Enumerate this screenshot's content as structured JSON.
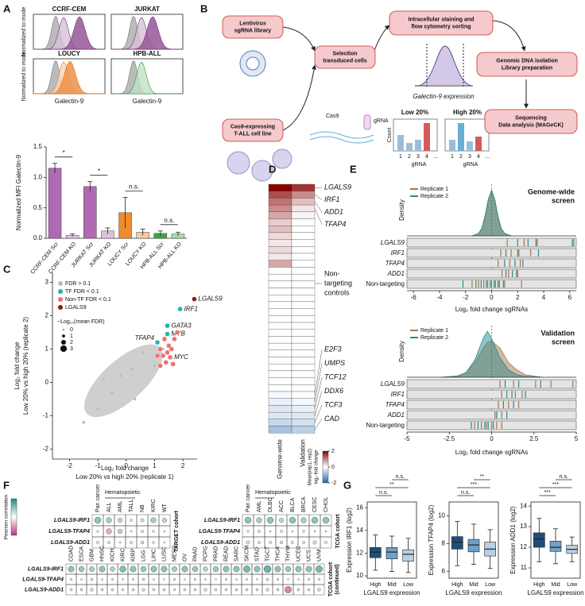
{
  "panel_labels": [
    "A",
    "B",
    "C",
    "D",
    "E",
    "F",
    "G"
  ],
  "histograms": {
    "titles": [
      "CCRF-CEM",
      "JURKAT",
      "LOUCY",
      "HPB-ALL"
    ],
    "ylabel": "Normalized to mode",
    "xlabel": "Galectin-9"
  },
  "diagram": {
    "boxes": [
      [
        "Lentivirus",
        "sgRNA library"
      ],
      [
        "Cas9-expressing",
        "T-ALL cell line"
      ],
      [
        "Selection",
        "transduced cells"
      ],
      [
        "Intracellular staining and",
        "flow cytometry sorting"
      ],
      [
        "Genomic DNA isolation",
        "Library preparation"
      ],
      [
        "Sequencing",
        "Data analysis (MAGeCK)"
      ]
    ],
    "cas9": "Cas9",
    "grna": "gRNA",
    "sort_axis": "Galectin-9 expression",
    "low": "Low 20%",
    "high": "High 20%",
    "count": "Count",
    "bar_ticks": [
      "1",
      "2",
      "3",
      "4",
      "..."
    ]
  },
  "chart_data": [
    {
      "type": "bar",
      "ylabel": "Normalized MFI Galectin-9",
      "categories": [
        "CCRF-CEM Scr",
        "CCRF-CEM KO",
        "JURKAT Scr",
        "JURKAT KO",
        "LOUCY Scr",
        "LOUCY KO",
        "HPB-ALL Scr",
        "HPB-ALL KO"
      ],
      "values": [
        1.15,
        0.05,
        0.85,
        0.12,
        0.42,
        0.1,
        0.08,
        0.07
      ],
      "errors": [
        0.08,
        0.02,
        0.08,
        0.05,
        0.25,
        0.05,
        0.04,
        0.03
      ],
      "colors": [
        "#b06ab3",
        "#dcc2e0",
        "#b06ab3",
        "#dcc2e0",
        "#f08c2a",
        "#f8c99c",
        "#3aa845",
        "#a9dca3"
      ],
      "ylim": [
        0,
        1.5
      ],
      "yticks": [
        {
          "value": 0,
          "label": "0.0"
        },
        0.5,
        {
          "value": 1,
          "label": "1.0"
        },
        1.5
      ],
      "annotations": [
        "*",
        "*",
        "n.s.",
        "n.s."
      ]
    },
    {
      "type": "scatter",
      "xlabel": "Log₂ fold change",
      "xlabel2": "Low 20% vs high 20% (replicate 1)",
      "ylabel": "Log₂ fold change",
      "ylabel2": "Low 20% vs high 20% (replicate 2)",
      "xlim": [
        -2.6,
        2.5
      ],
      "ylim": [
        -2.3,
        3.3
      ],
      "xticks": [
        -2,
        -1,
        0,
        1,
        2
      ],
      "yticks": [
        -2,
        -1,
        0,
        1,
        2,
        3
      ],
      "series": [
        {
          "name": "FDR > 0.1",
          "color": "#bdbdbd",
          "x": [
            -0.5,
            0.2,
            -1,
            0.6,
            -1.5,
            1,
            0.3,
            -0.2,
            1.3,
            -0.8
          ],
          "values": [
            -0.3,
            0.4,
            -0.8,
            0.9,
            -1.2,
            0.5,
            -0.5,
            0.2,
            1.0,
            0.1
          ],
          "labels": [
            null,
            null,
            null,
            null,
            null,
            null,
            null,
            null,
            null,
            null
          ]
        },
        {
          "name": "TF FDR < 0.1",
          "color": "#1fb3b3",
          "x": [
            1.9,
            1.45,
            1.45,
            1.1
          ],
          "values": [
            2.2,
            1.7,
            1.45,
            1.2
          ],
          "labels": [
            "IRF1",
            "GATA3",
            "MYB",
            "TFAP4"
          ]
        },
        {
          "name": "Non-TF FDR < 0.1",
          "color": "#f07070",
          "x": [
            1.2,
            1.3,
            1.5,
            1.4,
            1.6,
            1.7,
            1.2,
            1.8,
            1.35,
            1.55,
            1.1,
            1.65,
            1.45
          ],
          "values": [
            1.0,
            0.8,
            1.1,
            0.6,
            1.0,
            1.3,
            0.5,
            1.5,
            1.3,
            0.75,
            0.8,
            0.55,
            0.9
          ],
          "labels": [
            null,
            null,
            null,
            null,
            null,
            null,
            null,
            null,
            null,
            "MYC",
            null,
            null,
            null
          ]
        },
        {
          "name": "LGALS9",
          "color": "#8b1a1a",
          "x": [
            2.4
          ],
          "values": [
            2.5
          ],
          "labels": [
            "LGALS9"
          ]
        }
      ],
      "size_legend": {
        "title": "−Log₁₀(mean FDR)",
        "values": [
          0,
          1,
          2,
          3
        ]
      }
    },
    {
      "type": "heatmap",
      "columns": [
        "Genome-wide",
        "Validation"
      ],
      "clim": [
        -2,
        2
      ],
      "values": [
        [
          2.3,
          1.6
        ],
        [
          1.4,
          0.9
        ],
        [
          1.1,
          0.5
        ],
        [
          0.9,
          0.2
        ],
        [
          0.7,
          0.1
        ],
        [
          0.4,
          0
        ],
        [
          0.5,
          0
        ],
        [
          0.3,
          0
        ],
        [
          0.2,
          0
        ],
        [
          0.3,
          0
        ],
        [
          0.2,
          0
        ],
        [
          0.7,
          0
        ],
        [
          0,
          0
        ],
        [
          0,
          0
        ],
        [
          0,
          0
        ],
        [
          0,
          0
        ],
        [
          0,
          0
        ],
        [
          0,
          0
        ],
        [
          0,
          0
        ],
        [
          0,
          0
        ],
        [
          0,
          0
        ],
        [
          0,
          0
        ],
        [
          0,
          0
        ],
        [
          0,
          0
        ],
        [
          0,
          0
        ],
        [
          0,
          0
        ],
        [
          0,
          0
        ],
        [
          0,
          0
        ],
        [
          0,
          0
        ],
        [
          0,
          0
        ],
        [
          -0.1,
          0
        ],
        [
          -0.2,
          -0.1
        ],
        [
          -0.3,
          -0.2
        ],
        [
          -0.3,
          -0.3
        ],
        [
          -0.5,
          -0.4
        ],
        [
          -0.8,
          -0.6
        ]
      ],
      "genes_top": [
        "LGALS9",
        "IRF1",
        "ADD1",
        "TFAP4"
      ],
      "controls": [
        "Non-",
        "targeting",
        "controls"
      ],
      "genes_bottom": [
        "E2F3",
        "UMPS",
        "TCF12",
        "DDX6",
        "TCF3",
        "CAD"
      ],
      "colorbar_label": [
        "Mean(rep1, rep2)",
        "log₂ fold change"
      ],
      "colorbar_ticks": [
        2,
        0,
        -2
      ]
    },
    {
      "type": "density",
      "title": [
        "Genome-wide",
        "screen"
      ],
      "ylabel": "Density",
      "xlabel": "Log₂ fold change sgRNAs",
      "xlim": [
        -6.5,
        6.5
      ],
      "xticks": [
        -6,
        -4,
        -2,
        0,
        2,
        4,
        6
      ],
      "ylim": [
        0,
        1
      ],
      "x": [
        -1.5,
        -1,
        -0.75,
        -0.5,
        -0.25,
        0,
        0.25,
        0.5,
        0.75,
        1,
        1.5
      ],
      "series": [
        {
          "name": "Replicate 1",
          "color": "#a9744a",
          "values": [
            0,
            0.05,
            0.15,
            0.4,
            0.75,
            0.95,
            0.75,
            0.4,
            0.15,
            0.05,
            0
          ]
        },
        {
          "name": "Replicate 2",
          "color": "#2a8a8a",
          "values": [
            0,
            0.05,
            0.16,
            0.42,
            0.76,
            0.93,
            0.74,
            0.38,
            0.14,
            0.05,
            0
          ]
        }
      ],
      "rug": [
        {
          "label": "LGALS9",
          "values": [
            [
              1.2,
              2.5,
              3.4,
              6.3
            ],
            [
              2.0,
              2.8,
              3.5,
              6.2
            ]
          ]
        },
        {
          "label": "IRF1",
          "values": [
            [
              0.7,
              1.5,
              2.1,
              3.0
            ],
            [
              1.1,
              2.0,
              3.6
            ]
          ]
        },
        {
          "label": "TFAP4",
          "values": [
            [
              0.5,
              1.4,
              2.2
            ],
            [
              1.0,
              1.8,
              2.4
            ]
          ]
        },
        {
          "label": "ADD1",
          "values": [
            [
              0.8,
              1.3,
              1.9
            ],
            [
              1.1,
              1.6,
              2.0
            ]
          ]
        },
        {
          "label": "Non-targeting",
          "values": [
            [
              -1.5,
              -1.0,
              -0.6,
              -0.3,
              0,
              0.3,
              0.6,
              1.0,
              2.3
            ],
            [
              -2.2,
              -1.2,
              -0.8,
              -0.4,
              -0.1,
              0.2,
              0.5,
              0.9
            ]
          ]
        }
      ]
    },
    {
      "type": "density",
      "title": [
        "Validation",
        "screen"
      ],
      "ylabel": "Density",
      "xlabel": "Log₂ fold change sgRNAs",
      "xlim": [
        -5,
        5
      ],
      "xticks": [
        -5,
        -2.5,
        0,
        2.5,
        5
      ],
      "ylim": [
        0,
        1
      ],
      "x": [
        -3,
        -2,
        -1.5,
        -1,
        -0.5,
        -0.25,
        0,
        0.5,
        1,
        1.5,
        2,
        3
      ],
      "series": [
        {
          "name": "Replicate 1",
          "color": "#a9744a",
          "values": [
            0,
            0.03,
            0.1,
            0.3,
            0.6,
            0.72,
            0.75,
            0.6,
            0.3,
            0.15,
            0.05,
            0
          ]
        },
        {
          "name": "Replicate 2",
          "color": "#2a8a8a",
          "values": [
            0,
            0.02,
            0.1,
            0.35,
            0.8,
            0.95,
            0.8,
            0.4,
            0.15,
            0.05,
            0.02,
            0
          ]
        }
      ],
      "rug": [
        {
          "label": "LGALS9",
          "values": [
            [
              0.5,
              1.3,
              2.6,
              3.5,
              4.8
            ],
            [
              0.8,
              1.6,
              2.9
            ]
          ]
        },
        {
          "label": "IRF1",
          "values": [
            [
              0.6,
              1.4,
              1.8
            ],
            [
              0.9,
              1.2,
              2.0
            ]
          ]
        },
        {
          "label": "TFAP4",
          "values": [
            [
              0.4,
              1.0,
              1.6
            ],
            [
              0.7,
              1.3
            ]
          ]
        },
        {
          "label": "ADD1",
          "values": [
            [
              0.2,
              0.6
            ],
            [
              0.3,
              0.9
            ]
          ]
        },
        {
          "label": "Non-targeting",
          "values": [
            [
              -1.0,
              -0.6,
              -0.3,
              0,
              0.3,
              0.6
            ],
            [
              -1.2,
              -0.8,
              -0.4,
              -0.2,
              0.1
            ]
          ]
        }
      ]
    },
    {
      "type": "dotmatrix",
      "colorbar_label": "Pearson correlation",
      "clim": [
        -1,
        1
      ],
      "group_label": "Hematopoietic",
      "grids": [
        {
          "cohort": [
            "TARGET cohort"
          ],
          "columns": [
            "Pan cancer",
            "ALL",
            "AML",
            "TALL",
            "NB",
            "KIRC",
            "WT"
          ],
          "rows": [
            "LGALS9-IRF1",
            "LGALS9-TFAP4",
            "LGALS9-ADD1"
          ],
          "values": [
            [
              0.5,
              0.4,
              0.3,
              0.1,
              0.2,
              0.4,
              0.3
            ],
            [
              0.05,
              -0.4,
              -0.3,
              0,
              0.1,
              0.05,
              0
            ],
            [
              0.1,
              0.1,
              0,
              0.1,
              0.15,
              0.05,
              0
            ]
          ]
        },
        {
          "cohort": [
            "TCGA cohort"
          ],
          "columns": [
            "Pan cancer",
            "AML",
            "DLBC",
            "ACC",
            "BLCA",
            "BRCA",
            "CESC",
            "CHOL"
          ],
          "rows": [
            "LGALS9-IRF1",
            "LGALS9-TFAP4",
            "LGALS9-ADD1"
          ],
          "values": [
            [
              0.5,
              0.4,
              0.5,
              0.3,
              0.5,
              0.4,
              0.5,
              0.5
            ],
            [
              0.05,
              0.1,
              0,
              0.1,
              0,
              0.05,
              0,
              0
            ],
            [
              0.2,
              0.1,
              0.1,
              0.15,
              0.1,
              0.1,
              0.2,
              0.1
            ]
          ]
        },
        {
          "cohort": [
            "TCGA cohort",
            "(continued)"
          ],
          "columns": [
            "COAD",
            "ESCA",
            "GBM",
            "HNSC",
            "KICH",
            "KIRC",
            "KIRP",
            "LGG",
            "LIHC",
            "LUSC",
            "MESO",
            "OV",
            "PAAD",
            "PCPG",
            "PRAD",
            "READ",
            "SARC",
            "SKCM",
            "STAD",
            "TGCT",
            "THCA",
            "THYM",
            "UCEC",
            "UCS",
            "UVM"
          ],
          "rows": [
            "LGALS9-IRF1",
            "LGALS9-TFAP4",
            "LGALS9-ADD1"
          ],
          "values": [
            [
              0.5,
              0.45,
              0.4,
              0.5,
              0.35,
              0.55,
              0.5,
              0.45,
              0.5,
              0.5,
              0.4,
              0.5,
              0.45,
              0.35,
              0.45,
              0.5,
              0.5,
              0.6,
              0.5,
              0.65,
              0.5,
              0.45,
              0.5,
              0.5,
              0.6
            ],
            [
              0.05,
              0,
              0.1,
              0,
              0.05,
              0,
              0.05,
              0.1,
              0,
              0,
              0.05,
              0,
              0.05,
              0,
              0,
              0.05,
              0,
              0.05,
              0,
              0.1,
              0.05,
              0,
              0,
              0.05,
              0.05
            ],
            [
              0.1,
              0.1,
              0.15,
              0.1,
              0.1,
              0.05,
              0.1,
              0.15,
              0.1,
              0.1,
              0.05,
              0.1,
              0.1,
              0.15,
              0.1,
              0.1,
              0.1,
              0.1,
              0.1,
              0.15,
              0.1,
              -0.6,
              0.1,
              0.1,
              0.15
            ]
          ]
        }
      ]
    },
    {
      "type": "box",
      "ylabel": "Expression IRF1 (log2)",
      "xlabel": "LGALS9 expression",
      "categories": [
        "High",
        "Mid",
        "Low"
      ],
      "colors": [
        "#1f4e79",
        "#6fa0c8",
        "#b8cfe4"
      ],
      "ylim": [
        9.8,
        16.5
      ],
      "yticks": [
        10,
        12,
        14,
        16
      ],
      "whisker_low": [
        10.5,
        10.4,
        10.3
      ],
      "q1": [
        11.6,
        11.5,
        11.3
      ],
      "median": [
        12.1,
        12.1,
        11.9
      ],
      "q3": [
        12.5,
        12.5,
        12.3
      ],
      "whisker_high": [
        13.6,
        13.5,
        13.3
      ],
      "significance": [
        "n.s.",
        "**",
        "n.s."
      ]
    },
    {
      "type": "box",
      "ylabel": "Expression TFAP4 (log2)",
      "xlabel": "LGALS9 expression",
      "categories": [
        "High",
        "Mid",
        "Low"
      ],
      "colors": [
        "#1f4e79",
        "#6fa0c8",
        "#b8cfe4"
      ],
      "ylim": [
        5.5,
        11
      ],
      "yticks": [
        6,
        8,
        10
      ],
      "whisker_low": [
        6.4,
        6.5,
        6.2
      ],
      "q1": [
        7.6,
        7.4,
        7.1
      ],
      "median": [
        8.1,
        7.9,
        7.6
      ],
      "q3": [
        8.5,
        8.3,
        8.1
      ],
      "whisker_high": [
        9.6,
        9.4,
        9.0
      ],
      "significance": [
        "n.s.",
        "***",
        "**"
      ]
    },
    {
      "type": "box",
      "ylabel": "Expression ADD1 (log2)",
      "xlabel": "LGALS9 expression",
      "categories": [
        "High",
        "Mid",
        "Low"
      ],
      "colors": [
        "#1f4e79",
        "#6fa0c8",
        "#b8cfe4"
      ],
      "ylim": [
        10.5,
        14.2
      ],
      "yticks": [
        11,
        12,
        13,
        14
      ],
      "whisker_low": [
        11.3,
        11.2,
        11.3
      ],
      "q1": [
        12,
        11.8,
        11.7
      ],
      "median": [
        12.4,
        12.0,
        11.9
      ],
      "q3": [
        12.7,
        12.3,
        12.1
      ],
      "whisker_high": [
        13.4,
        12.9,
        12.5
      ],
      "significance": [
        "***",
        "***",
        "n.s."
      ]
    }
  ]
}
